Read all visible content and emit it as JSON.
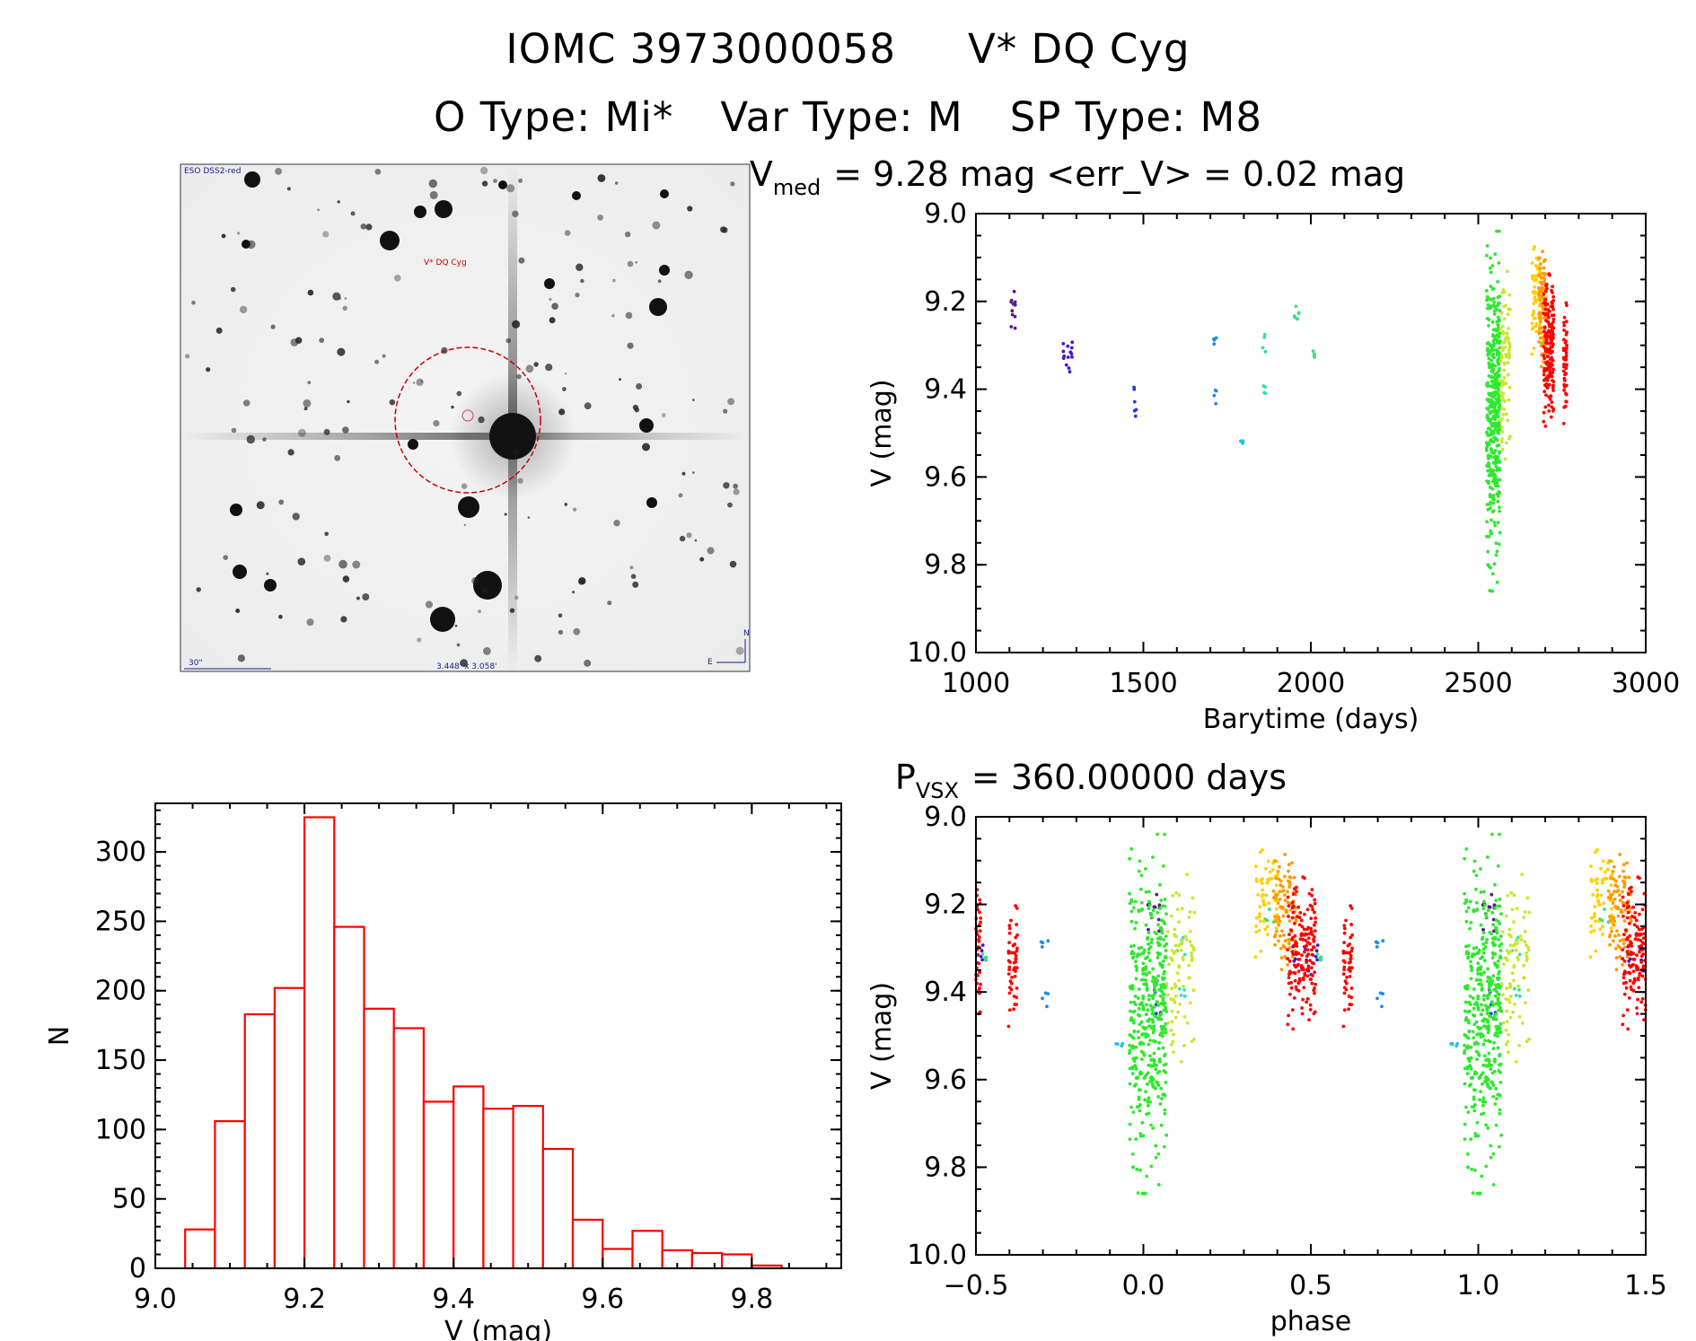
{
  "header": {
    "id_label": "IOMC 3973000058",
    "star_name": "V* DQ Cyg",
    "o_type": "O Type: Mi*",
    "var_type": "Var Type: M",
    "sp_type": "SP Type: M8"
  },
  "finder_image": {
    "survey_label": "ESO DSS2-red",
    "target_label": "V* DQ Cyg",
    "scale_label": "30\"",
    "fov_label": "3.448' x 3.058'",
    "north_label": "N",
    "east_label": "E"
  },
  "colors": {
    "axis": "#000000",
    "histogram": "#ff0000",
    "circle": "#cc0000",
    "season_colors": [
      "#5b1a8a",
      "#4a14c8",
      "#2a3ae0",
      "#1a8cf0",
      "#22c0f0",
      "#30e0b0",
      "#38e080",
      "#2ee82e",
      "#7ee82e",
      "#c8e82e",
      "#ffd000",
      "#ff9a00",
      "#ff5a00",
      "#ff0000"
    ]
  },
  "chart_data": [
    {
      "id": "lightcurve",
      "type": "scatter",
      "title_main": "V",
      "title_sub": "med",
      "title_rest": "= 9.28 mag <err_V> = 0.02 mag",
      "xlabel": "Barytime (days)",
      "ylabel": "V (mag)",
      "xlim": [
        1000,
        3000
      ],
      "ylim": [
        10.0,
        9.0
      ],
      "x_ticks": [
        1000,
        1500,
        2000,
        2500,
        3000
      ],
      "x_tick_labels": [
        "1000",
        "1500",
        "2000",
        "2500",
        "3000"
      ],
      "y_ticks": [
        9.0,
        9.2,
        9.4,
        9.6,
        9.8,
        10.0
      ],
      "y_tick_labels": [
        "9.0",
        "9.2",
        "9.4",
        "9.6",
        "9.8",
        "10.0"
      ],
      "seasons": [
        {
          "t_min": 1105,
          "t_max": 1118,
          "v_min": 9.16,
          "v_max": 9.28,
          "n": 12,
          "color_index": 0
        },
        {
          "t_min": 1260,
          "t_max": 1290,
          "v_min": 9.29,
          "v_max": 9.38,
          "n": 14,
          "color_index": 1
        },
        {
          "t_min": 1470,
          "t_max": 1480,
          "v_min": 9.38,
          "v_max": 9.49,
          "n": 6,
          "color_index": 2
        },
        {
          "t_min": 1710,
          "t_max": 1718,
          "v_min": 9.26,
          "v_max": 9.3,
          "n": 4,
          "color_index": 3
        },
        {
          "t_min": 1710,
          "t_max": 1718,
          "v_min": 9.4,
          "v_max": 9.45,
          "n": 4,
          "color_index": 3
        },
        {
          "t_min": 1790,
          "t_max": 1800,
          "v_min": 9.51,
          "v_max": 9.53,
          "n": 4,
          "color_index": 4
        },
        {
          "t_min": 1855,
          "t_max": 1865,
          "v_min": 9.25,
          "v_max": 9.32,
          "n": 4,
          "color_index": 5
        },
        {
          "t_min": 1855,
          "t_max": 1865,
          "v_min": 9.37,
          "v_max": 9.43,
          "n": 4,
          "color_index": 5
        },
        {
          "t_min": 1950,
          "t_max": 1965,
          "v_min": 9.2,
          "v_max": 9.26,
          "n": 6,
          "color_index": 6
        },
        {
          "t_min": 2005,
          "t_max": 2015,
          "v_min": 9.29,
          "v_max": 9.35,
          "n": 5,
          "color_index": 6
        },
        {
          "t_min": 2525,
          "t_max": 2565,
          "v_min": 9.04,
          "v_max": 9.86,
          "n": 420,
          "color_index": 7
        },
        {
          "t_min": 2565,
          "t_max": 2595,
          "v_min": 9.12,
          "v_max": 9.56,
          "n": 80,
          "color_index": 9
        },
        {
          "t_min": 2660,
          "t_max": 2685,
          "v_min": 9.05,
          "v_max": 9.32,
          "n": 60,
          "color_index": 10
        },
        {
          "t_min": 2680,
          "t_max": 2705,
          "v_min": 9.08,
          "v_max": 9.36,
          "n": 90,
          "color_index": 11
        },
        {
          "t_min": 2695,
          "t_max": 2725,
          "v_min": 9.1,
          "v_max": 9.53,
          "n": 160,
          "color_index": 13
        },
        {
          "t_min": 2755,
          "t_max": 2765,
          "v_min": 9.18,
          "v_max": 9.49,
          "n": 50,
          "color_index": 13
        }
      ]
    },
    {
      "id": "histogram",
      "type": "bar",
      "xlabel": "V (mag)",
      "ylabel": "N",
      "xlim": [
        9.0,
        9.92
      ],
      "ylim": [
        0,
        335
      ],
      "x_ticks": [
        9.0,
        9.2,
        9.4,
        9.6,
        9.8
      ],
      "x_tick_labels": [
        "9.0",
        "9.2",
        "9.4",
        "9.6",
        "9.8"
      ],
      "y_ticks": [
        0,
        50,
        100,
        150,
        200,
        250,
        300
      ],
      "y_tick_labels": [
        "0",
        "50",
        "100",
        "150",
        "200",
        "250",
        "300"
      ],
      "bin_start": 9.04,
      "bin_width": 0.04,
      "values": [
        28,
        106,
        183,
        202,
        325,
        246,
        187,
        173,
        120,
        131,
        115,
        117,
        86,
        35,
        14,
        27,
        13,
        11,
        10,
        2
      ]
    },
    {
      "id": "phased",
      "type": "scatter",
      "title_main": "P",
      "title_sub": "VSX",
      "title_rest": "= 360.00000 days",
      "period_days": 360.0,
      "xlabel": "phase",
      "ylabel": "V (mag)",
      "xlim": [
        -0.5,
        1.5
      ],
      "ylim": [
        10.0,
        9.0
      ],
      "x_ticks": [
        -0.5,
        0.0,
        0.5,
        1.0,
        1.5
      ],
      "x_tick_labels": [
        "−0.5",
        "0.0",
        "0.5",
        "1.0",
        "1.5"
      ],
      "y_ticks": [
        9.0,
        9.2,
        9.4,
        9.6,
        9.8,
        10.0
      ],
      "y_tick_labels": [
        "9.0",
        "9.2",
        "9.4",
        "9.6",
        "9.8",
        "10.0"
      ]
    }
  ]
}
